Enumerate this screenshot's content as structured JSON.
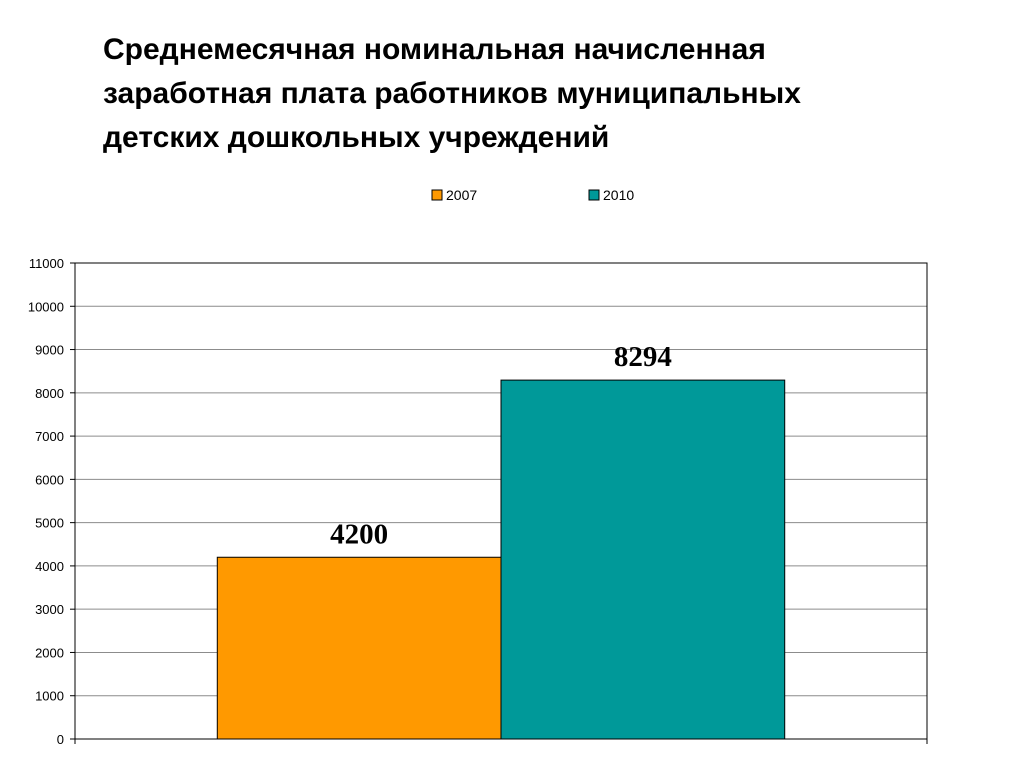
{
  "title_lines": [
    "Среднемесячная номинальная начисленная",
    "заработная плата работников муниципальных",
    "детских дошкольных учреждений"
  ],
  "chart_data": {
    "type": "bar",
    "title": "Среднемесячная номинальная начисленная заработная плата работников муниципальных детских дошкольных учреждений",
    "categories": [
      ""
    ],
    "series": [
      {
        "name": "2007",
        "values": [
          4200
        ],
        "color": "#FF9900"
      },
      {
        "name": "2010",
        "values": [
          8294
        ],
        "color": "#009999"
      }
    ],
    "data_labels": [
      "4200",
      "8294"
    ],
    "ylim": [
      0,
      11000
    ],
    "yticks": [
      0,
      1000,
      2000,
      3000,
      4000,
      5000,
      6000,
      7000,
      8000,
      9000,
      10000,
      11000
    ],
    "ytick_labels": [
      "0",
      "1000",
      "2000",
      "3000",
      "4000",
      "5000",
      "6000",
      "7000",
      "8000",
      "9000",
      "10000",
      "11000"
    ],
    "grid": true,
    "legend_position": "top",
    "xlabel": "",
    "ylabel": ""
  }
}
